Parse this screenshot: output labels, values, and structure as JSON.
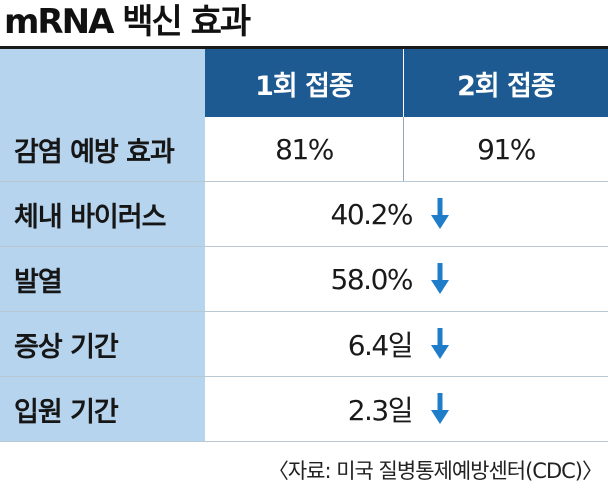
{
  "title": "mRNA 백신 효과",
  "colors": {
    "header_bg": "#1c5a91",
    "label_bg": "#b6d4ee",
    "arrow": "#1f7cc8"
  },
  "table": {
    "headers": [
      "1회 접종",
      "2회 접종"
    ],
    "prevention_row": {
      "label": "감염 예방 효과",
      "values": [
        "81%",
        "91%"
      ]
    },
    "merged_rows": [
      {
        "label": "체내 바이러스",
        "value": "40.2%",
        "icon": "down-arrow-icon"
      },
      {
        "label": "발열",
        "value": "58.0%",
        "icon": "down-arrow-icon"
      },
      {
        "label": "증상 기간",
        "value": "6.4일",
        "icon": "down-arrow-icon"
      },
      {
        "label": "입원 기간",
        "value": "2.3일",
        "icon": "down-arrow-icon"
      }
    ]
  },
  "source": "〈자료: 미국 질병통제예방센터(CDC)〉"
}
